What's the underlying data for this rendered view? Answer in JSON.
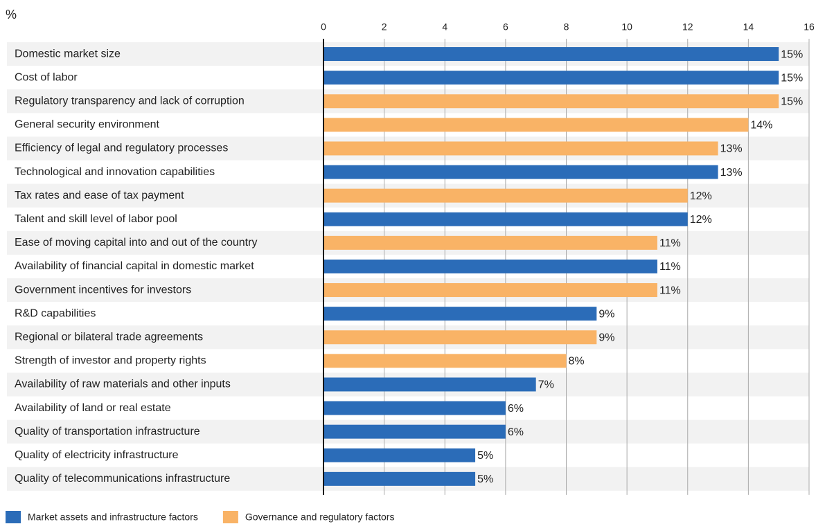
{
  "chart_data": {
    "type": "hbar",
    "axis_label": "%",
    "categories": [
      "Domestic market size",
      "Cost of labor",
      "Regulatory transparency and lack of corruption",
      "General security environment",
      "Efficiency of legal and regulatory processes",
      "Technological and innovation capabilities",
      "Tax rates and ease of tax payment",
      "Talent and skill level of labor pool",
      "Ease of moving capital into and out of the country",
      "Availability of financial capital in domestic market",
      "Government incentives for investors",
      "R&D capabilities",
      "Regional or bilateral trade agreements",
      "Strength of investor and property rights",
      "Availability of raw materials and other inputs",
      "Availability of land or real estate",
      "Quality of transportation infrastructure",
      "Quality of electricity infrastructure",
      "Quality of telecommunications infrastructure"
    ],
    "series": [
      {
        "name": "Market assets and infrastructure factors",
        "color": "#2b6cb8",
        "values": [
          15,
          15,
          null,
          null,
          null,
          13,
          null,
          12,
          null,
          11,
          null,
          9,
          null,
          null,
          7,
          6,
          6,
          5,
          5
        ],
        "value_labels": [
          "15%",
          "15%",
          null,
          null,
          null,
          "13%",
          null,
          "12%",
          null,
          "11%",
          null,
          "9%",
          null,
          null,
          "7%",
          "6%",
          "6%",
          "5%",
          "5%"
        ]
      },
      {
        "name": "Governance and regulatory factors",
        "color": "#f9b366",
        "values": [
          null,
          null,
          15,
          14,
          13,
          null,
          12,
          null,
          11,
          null,
          11,
          null,
          9,
          8,
          null,
          null,
          null,
          null,
          null
        ],
        "value_labels": [
          null,
          null,
          "15%",
          "14%",
          "13%",
          null,
          "12%",
          null,
          "11%",
          null,
          "11%",
          null,
          "9%",
          "8%",
          null,
          null,
          null,
          null,
          null
        ]
      }
    ],
    "xlim": [
      0,
      16
    ],
    "xticks": [
      0,
      2,
      4,
      6,
      8,
      10,
      12,
      14,
      16
    ],
    "grid": true,
    "legend": "bottom"
  }
}
